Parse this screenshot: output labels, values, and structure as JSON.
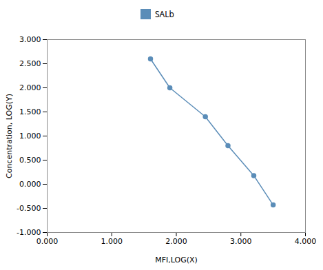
{
  "chart_data": {
    "type": "line",
    "x": [
      1.6,
      1.9,
      2.45,
      2.8,
      3.2,
      3.5
    ],
    "series": [
      {
        "name": "SALb",
        "color": "#5b8db8",
        "marker": "circle",
        "values": [
          2.6,
          2.0,
          1.4,
          0.8,
          0.18,
          -0.43
        ]
      }
    ],
    "xlabel": "MFI,LOG(X)",
    "ylabel": "Concentration, LOG(Y)",
    "xlim": [
      0.0,
      4.0
    ],
    "ylim": [
      -1.0,
      3.0
    ],
    "xticks": [
      {
        "value": 0,
        "label": "0.000"
      },
      {
        "value": 1,
        "label": "1.000"
      },
      {
        "value": 2,
        "label": "2.000"
      },
      {
        "value": 3,
        "label": "3.000"
      },
      {
        "value": 4,
        "label": "4.000"
      }
    ],
    "yticks": [
      {
        "value": -1,
        "label": "-1.000"
      },
      {
        "value": -0.5,
        "label": "-0.500"
      },
      {
        "value": 0,
        "label": "0.000"
      },
      {
        "value": 0.5,
        "label": "0.500"
      },
      {
        "value": 1,
        "label": "1.000"
      },
      {
        "value": 1.5,
        "label": "1.500"
      },
      {
        "value": 2,
        "label": "2.000"
      },
      {
        "value": 2.5,
        "label": "2.500"
      },
      {
        "value": 3,
        "label": "3.000"
      }
    ],
    "legend": "top",
    "grid": false
  }
}
